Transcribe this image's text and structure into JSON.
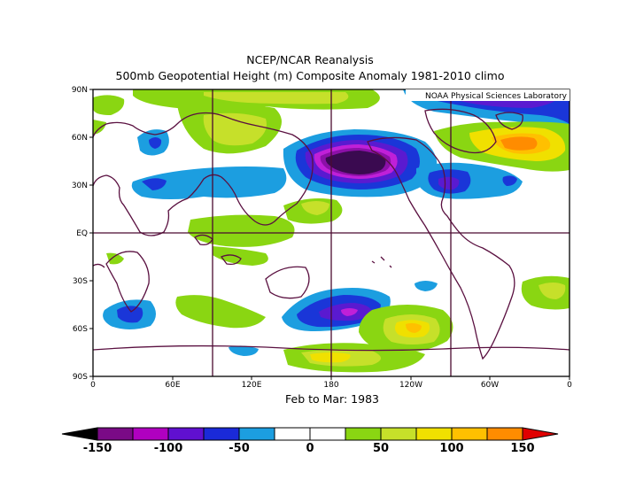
{
  "header": {
    "title": "NCEP/NCAR Reanalysis",
    "subtitle": "500mb Geopotential Height (m) Composite Anomaly 1981-2010 climo"
  },
  "credit": "NOAA Physical Sciences Laboratory",
  "period": "Feb to Mar: 1983",
  "axes": {
    "lat_labels": [
      "90N",
      "60N",
      "30N",
      "EQ",
      "30S",
      "60S",
      "90S"
    ],
    "lon_labels": [
      "0",
      "60E",
      "120E",
      "180",
      "120W",
      "60W",
      "0"
    ]
  },
  "colorbar": {
    "labels": [
      "-150",
      "-100",
      "-50",
      "0",
      "50",
      "100",
      "150"
    ],
    "colors": [
      "#000000",
      "#7a0a86",
      "#b000c0",
      "#d010d8",
      "#6010d0",
      "#1a2ad8",
      "#1c9ee0",
      "#ffffff",
      "#ffffff",
      "#8ad612",
      "#c6e02a",
      "#f0e000",
      "#ffc000",
      "#ff8c00",
      "#ff4800",
      "#e00000"
    ]
  },
  "anomaly_colors": {
    "neg5": "#3a0a50",
    "neg4": "#8c10a8",
    "neg3": "#c020d8",
    "neg2": "#5a1ad0",
    "neg1": "#1a36d8",
    "neg0": "#1c9ee0",
    "pos1": "#8ad612",
    "pos2": "#c6e02a",
    "pos3": "#f0e000",
    "pos4": "#ffc000",
    "pos5": "#ff8c00"
  }
}
